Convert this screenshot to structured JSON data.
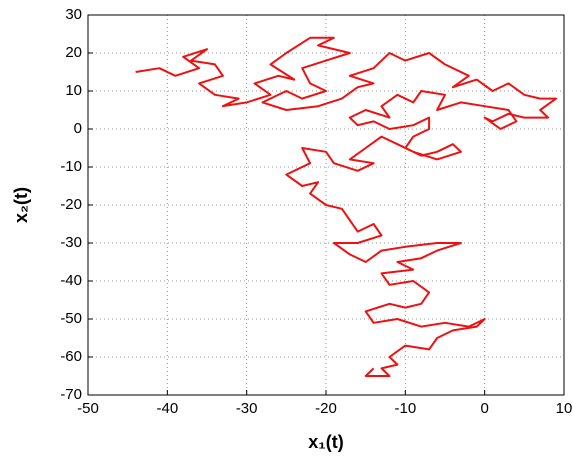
{
  "chart_data": {
    "type": "line",
    "xlabel": "x₁(t)",
    "ylabel": "x₂(t)",
    "xlim": [
      -50,
      10
    ],
    "xticks": [
      -50,
      -40,
      -30,
      -20,
      -10,
      0,
      10
    ],
    "ylim": [
      -70,
      30
    ],
    "yticks": [
      -70,
      -60,
      -50,
      -40,
      -30,
      -20,
      -10,
      0,
      10,
      20,
      30
    ],
    "grid": true,
    "series": [
      {
        "color": "#ee1111",
        "x": [
          -44,
          -41,
          -39,
          -36,
          -38,
          -35,
          -37,
          -34,
          -33,
          -36,
          -34,
          -31,
          -33,
          -30,
          -27,
          -29,
          -26,
          -24,
          -27,
          -25,
          -22,
          -19,
          -21,
          -17,
          -20,
          -23,
          -22,
          -20,
          -23,
          -25,
          -28,
          -25,
          -21,
          -18,
          -16,
          -14,
          -17,
          -14,
          -12,
          -10,
          -7,
          -5,
          -2,
          -4,
          -1,
          1,
          3,
          5,
          7,
          9,
          7,
          8,
          5,
          3,
          1,
          0,
          2,
          4,
          3,
          0,
          -3,
          -6,
          -5,
          -8,
          -9,
          -11,
          -13,
          -12,
          -15,
          -17,
          -16,
          -14,
          -12,
          -9,
          -7,
          -7,
          -9,
          -10,
          -8,
          -6,
          -4,
          -3,
          -6,
          -9,
          -11,
          -13,
          -15,
          -17,
          -14,
          -16,
          -19,
          -20,
          -23,
          -22,
          -25,
          -23,
          -21,
          -22,
          -20,
          -18,
          -17,
          -16,
          -14,
          -13,
          -16,
          -19,
          -17,
          -15,
          -13,
          -10,
          -6,
          -3,
          -6,
          -8,
          -11,
          -9,
          -13,
          -12,
          -9,
          -7,
          -8,
          -10,
          -12,
          -15,
          -14,
          -11,
          -8,
          -5,
          -2,
          0,
          -1,
          -4,
          -6,
          -7,
          -10,
          -12,
          -11,
          -13,
          -12,
          -15,
          -14
        ],
        "values": [
          15,
          16,
          14,
          16,
          19,
          21,
          18,
          17,
          14,
          12,
          9,
          8,
          6,
          7,
          9,
          12,
          14,
          13,
          17,
          20,
          24,
          24,
          22,
          20,
          18,
          16,
          12,
          10,
          8,
          10,
          7,
          5,
          6,
          8,
          11,
          12,
          14,
          16,
          20,
          18,
          20,
          17,
          14,
          11,
          13,
          10,
          12,
          9,
          8,
          8,
          5,
          3,
          3,
          4,
          2,
          3,
          0,
          2,
          5,
          6,
          7,
          5,
          9,
          10,
          7,
          9,
          6,
          3,
          5,
          3,
          1,
          2,
          0,
          1,
          3,
          0,
          -2,
          -5,
          -7,
          -6,
          -4,
          -6,
          -8,
          -6,
          -4,
          -2,
          -5,
          -8,
          -9,
          -11,
          -9,
          -6,
          -5,
          -9,
          -12,
          -15,
          -14,
          -17,
          -20,
          -21,
          -24,
          -27,
          -25,
          -28,
          -30,
          -30,
          -33,
          -35,
          -32,
          -31,
          -30,
          -30,
          -32,
          -34,
          -35,
          -37,
          -38,
          -41,
          -40,
          -43,
          -46,
          -47,
          -46,
          -48,
          -51,
          -50,
          -52,
          -51,
          -52,
          -50,
          -52,
          -53,
          -55,
          -58,
          -57,
          -60,
          -62,
          -63,
          -65,
          -65,
          -63
        ]
      }
    ]
  }
}
